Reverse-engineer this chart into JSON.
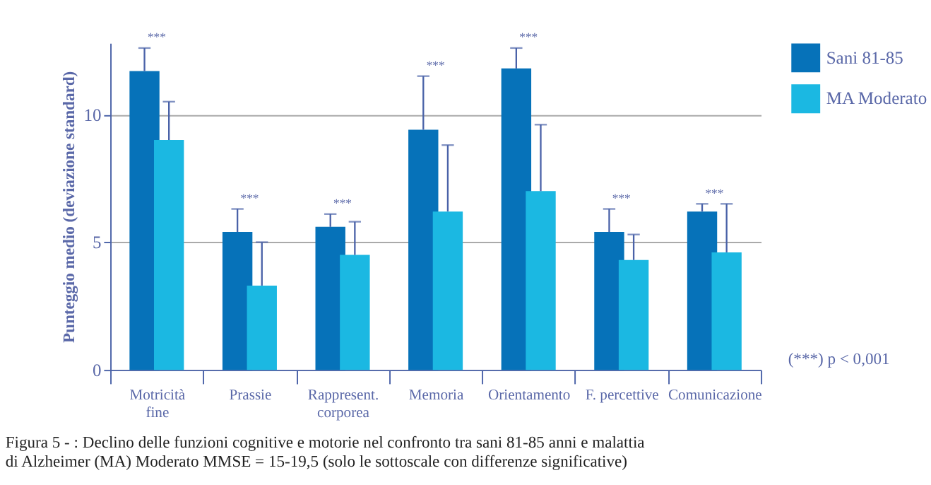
{
  "chart_data": {
    "type": "bar",
    "ylabel": "Punteggio medio (deviazione standard)",
    "categories": [
      "Motricità\nfine",
      "Prassie",
      "Rappresent.\ncorporea",
      "Memoria",
      "Orientamento",
      "F. percettive",
      "Comunicazione"
    ],
    "series": [
      {
        "name": "Sani 81-85",
        "color": "#0672b9",
        "values": [
          11.7,
          5.4,
          5.6,
          9.4,
          11.8,
          5.4,
          6.2
        ],
        "errors": [
          [
            11.7,
            12.6
          ],
          [
            5.4,
            6.3
          ],
          [
            5.6,
            6.1
          ],
          [
            9.4,
            11.5
          ],
          [
            11.8,
            12.6
          ],
          [
            5.4,
            6.3
          ],
          [
            6.2,
            6.5
          ]
        ]
      },
      {
        "name": "MA Moderato",
        "color": "#1bb8e2",
        "values": [
          9.0,
          3.3,
          4.5,
          6.2,
          7.0,
          4.3,
          4.6
        ],
        "errors": [
          [
            9.0,
            10.5
          ],
          [
            3.3,
            5.0
          ],
          [
            4.5,
            5.8
          ],
          [
            6.2,
            8.8
          ],
          [
            7.0,
            9.6
          ],
          [
            4.3,
            5.3
          ],
          [
            4.6,
            6.5
          ]
        ]
      }
    ],
    "ylim": [
      0,
      12.8
    ],
    "yticks": [
      0,
      5,
      10
    ],
    "grid": "y",
    "legend": "top right",
    "annotations": [
      "***",
      "***",
      "***",
      "***",
      "***",
      "***",
      "***",
      "(***) p < 0,001",
      "Figura 5 - : Declino delle funzioni cognitive e motorie nel confronto tra sani 81-85 anni e malattia di Alzheimer (MA) Moderato MMSE = 15-19,5 (solo le sottoscale con differenze significative)"
    ]
  }
}
